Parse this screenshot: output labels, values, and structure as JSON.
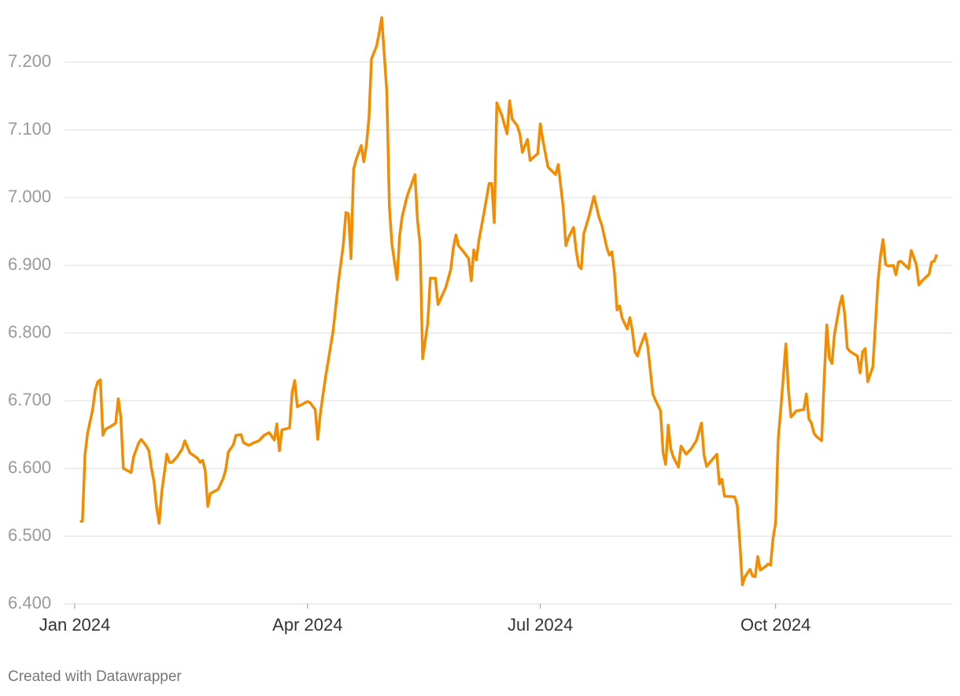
{
  "chart_data": {
    "type": "line",
    "footer": "Created with Datawrapper",
    "color": "#f28c00",
    "grid": true,
    "xlim": [
      -4,
      343
    ],
    "xticks": [
      {
        "value": 0,
        "label": "Jan 2024"
      },
      {
        "value": 91,
        "label": "Apr 2024"
      },
      {
        "value": 182,
        "label": "Jul 2024"
      },
      {
        "value": 274,
        "label": "Oct 2024"
      }
    ],
    "ylim": [
      6.4,
      7.2
    ],
    "yticks": [
      {
        "value": 6.4,
        "label": "6.400"
      },
      {
        "value": 6.5,
        "label": "6.500"
      },
      {
        "value": 6.6,
        "label": "6.600"
      },
      {
        "value": 6.7,
        "label": "6.700"
      },
      {
        "value": 6.8,
        "label": "6.800"
      },
      {
        "value": 6.9,
        "label": "6.900"
      },
      {
        "value": 7.0,
        "label": "7.000"
      },
      {
        "value": 7.1,
        "label": "7.100"
      },
      {
        "value": 7.2,
        "label": "7.200"
      }
    ],
    "x": [
      2,
      3,
      4,
      5,
      7,
      8,
      9,
      10,
      11,
      12,
      14,
      16,
      17,
      18,
      19,
      22,
      23,
      25,
      26,
      28,
      29,
      30,
      31,
      32,
      33,
      34,
      36,
      37,
      38,
      40,
      42,
      43,
      45,
      48,
      49,
      50,
      51,
      52,
      53,
      56,
      58,
      59,
      60,
      62,
      63,
      65,
      66,
      68,
      70,
      72,
      74,
      76,
      78,
      79,
      80,
      81,
      84,
      85,
      86,
      87,
      91,
      92,
      94,
      95,
      96,
      98,
      101,
      103,
      105,
      106,
      107,
      108,
      109,
      110,
      112,
      113,
      114,
      115,
      116,
      118,
      119,
      120,
      122,
      123,
      124,
      126,
      127,
      128,
      130,
      133,
      134,
      135,
      136,
      138,
      139,
      141,
      142,
      145,
      147,
      148,
      149,
      150,
      152,
      154,
      155,
      156,
      157,
      158,
      160,
      162,
      163,
      164,
      165,
      167,
      169,
      170,
      171,
      173,
      174,
      175,
      177,
      178,
      181,
      182,
      183,
      185,
      188,
      189,
      191,
      192,
      193,
      195,
      196,
      197,
      198,
      199,
      201,
      203,
      205,
      206,
      208,
      209,
      210,
      211,
      212,
      213,
      214,
      216,
      217,
      218,
      219,
      220,
      221,
      223,
      224,
      226,
      227,
      229,
      230,
      231,
      232,
      233,
      234,
      236,
      237,
      239,
      241,
      243,
      245,
      246,
      247,
      249,
      251,
      252,
      253,
      254,
      258,
      259,
      260,
      261,
      262,
      264,
      265,
      266,
      267,
      268,
      270,
      271,
      272,
      273,
      274,
      275,
      276,
      278,
      279,
      280,
      281,
      282,
      285,
      286,
      287,
      288,
      289,
      290,
      292,
      293,
      294,
      295,
      296,
      297,
      299,
      300,
      301,
      302,
      303,
      306,
      307,
      308,
      309,
      310,
      312,
      314,
      315,
      316,
      317,
      318,
      320,
      321,
      322,
      323,
      326,
      327,
      328,
      329,
      330,
      331,
      334,
      335,
      336,
      337
    ],
    "values": [
      6.522,
      6.522,
      6.62,
      6.652,
      6.687,
      6.716,
      6.728,
      6.731,
      6.649,
      6.658,
      6.662,
      6.667,
      6.703,
      6.676,
      6.6,
      6.594,
      6.617,
      6.638,
      6.643,
      6.633,
      6.626,
      6.6,
      6.58,
      6.542,
      6.519,
      6.565,
      6.621,
      6.609,
      6.609,
      6.617,
      6.629,
      6.641,
      6.623,
      6.615,
      6.609,
      6.612,
      6.597,
      6.544,
      6.563,
      6.569,
      6.585,
      6.598,
      6.624,
      6.635,
      6.649,
      6.65,
      6.638,
      6.634,
      6.638,
      6.641,
      6.649,
      6.653,
      6.642,
      6.666,
      6.626,
      6.657,
      6.66,
      6.713,
      6.73,
      6.691,
      6.699,
      6.697,
      6.687,
      6.643,
      6.681,
      6.734,
      6.803,
      6.873,
      6.931,
      6.978,
      6.976,
      6.91,
      7.042,
      7.056,
      7.077,
      7.053,
      7.077,
      7.117,
      7.205,
      7.224,
      7.243,
      7.266,
      7.155,
      6.986,
      6.931,
      6.879,
      6.943,
      6.972,
      7.003,
      7.034,
      6.966,
      6.931,
      6.762,
      6.815,
      6.881,
      6.881,
      6.842,
      6.867,
      6.894,
      6.926,
      6.945,
      6.929,
      6.92,
      6.91,
      6.877,
      6.923,
      6.908,
      6.937,
      6.978,
      7.021,
      7.021,
      6.963,
      7.14,
      7.121,
      7.094,
      7.143,
      7.116,
      7.106,
      7.094,
      7.067,
      7.086,
      7.055,
      7.065,
      7.109,
      7.085,
      7.045,
      7.034,
      7.049,
      6.984,
      6.929,
      6.941,
      6.956,
      6.922,
      6.899,
      6.895,
      6.947,
      6.972,
      7.002,
      6.97,
      6.96,
      6.926,
      6.915,
      6.92,
      6.888,
      6.834,
      6.84,
      6.822,
      6.806,
      6.823,
      6.803,
      6.772,
      6.766,
      6.779,
      6.799,
      6.78,
      6.71,
      6.701,
      6.685,
      6.623,
      6.606,
      6.664,
      6.629,
      6.617,
      6.602,
      6.633,
      6.621,
      6.629,
      6.641,
      6.667,
      6.62,
      6.603,
      6.612,
      6.621,
      6.577,
      6.584,
      6.559,
      6.558,
      6.545,
      6.49,
      6.428,
      6.44,
      6.451,
      6.441,
      6.44,
      6.47,
      6.45,
      6.455,
      6.459,
      6.457,
      6.497,
      6.52,
      6.643,
      6.687,
      6.784,
      6.716,
      6.676,
      6.68,
      6.685,
      6.687,
      6.71,
      6.673,
      6.667,
      6.652,
      6.647,
      6.641,
      6.734,
      6.812,
      6.763,
      6.755,
      6.798,
      6.841,
      6.855,
      6.827,
      6.778,
      6.773,
      6.766,
      6.741,
      6.772,
      6.777,
      6.728,
      6.75,
      6.876,
      6.914,
      6.938,
      6.901,
      6.899,
      6.9,
      6.886,
      6.905,
      6.906,
      6.895,
      6.922,
      6.912,
      6.901,
      6.871,
      6.876,
      6.887,
      6.905,
      6.906,
      6.916
    ]
  }
}
